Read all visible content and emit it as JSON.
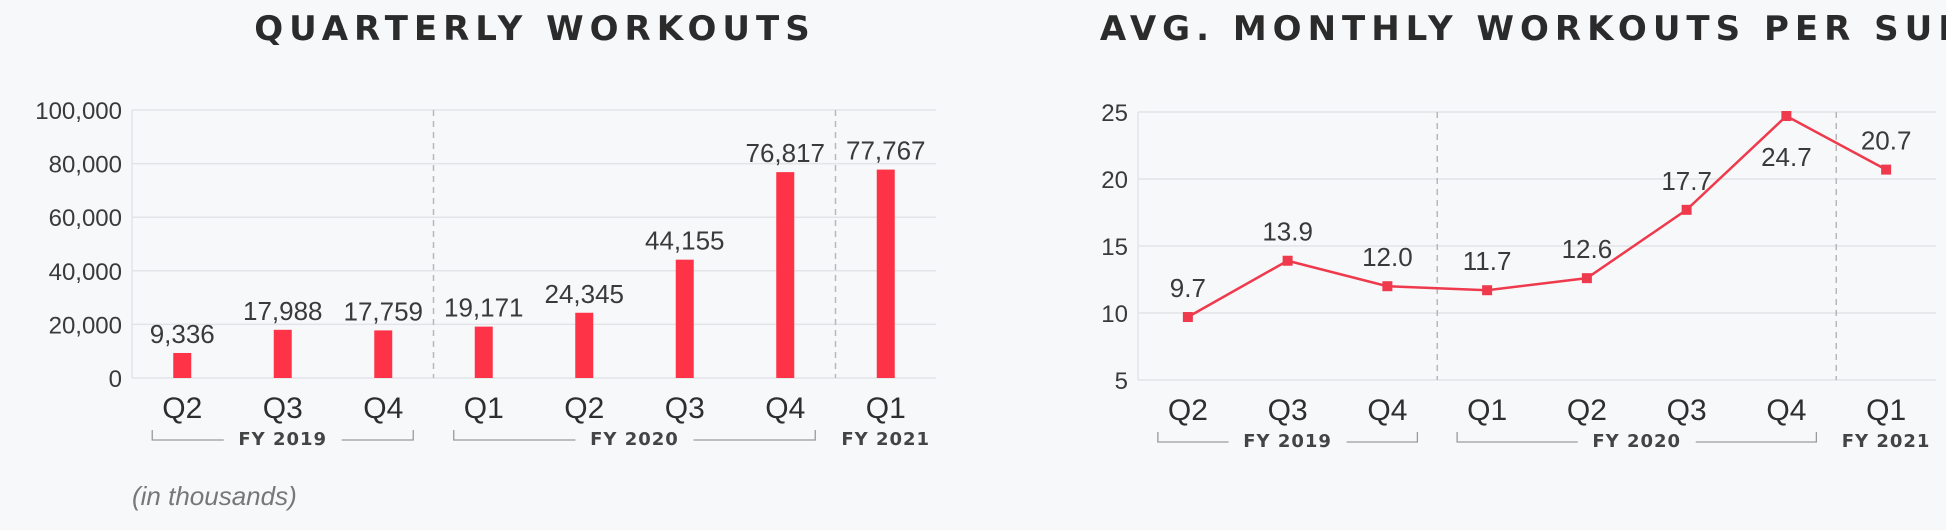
{
  "note": "(in thousands)",
  "chart_data": [
    {
      "type": "bar",
      "title": "QUARTERLY WORKOUTS",
      "categories": [
        "Q2",
        "Q3",
        "Q4",
        "Q1",
        "Q2",
        "Q3",
        "Q4",
        "Q1"
      ],
      "fiscal_years": [
        {
          "label": "FY 2019",
          "from": 0,
          "to": 2
        },
        {
          "label": "FY 2020",
          "from": 3,
          "to": 6
        },
        {
          "label": "FY 2021",
          "from": 7,
          "to": 7
        }
      ],
      "values": [
        9336,
        17988,
        17759,
        19171,
        24345,
        44155,
        76817,
        77767
      ],
      "data_labels": [
        "9,336",
        "17,988",
        "17,759",
        "19,171",
        "24,345",
        "44,155",
        "76,817",
        "77,767"
      ],
      "ylim": [
        0,
        100000
      ],
      "yticks": [
        0,
        20000,
        40000,
        60000,
        80000,
        100000
      ],
      "ytick_labels": [
        "0",
        "20,000",
        "40,000",
        "60,000",
        "80,000",
        "100,000"
      ],
      "grid": true,
      "color": "#ff3347"
    },
    {
      "type": "line",
      "title": "AVG. MONTHLY WORKOUTS PER SUB",
      "categories": [
        "Q2",
        "Q3",
        "Q4",
        "Q1",
        "Q2",
        "Q3",
        "Q4",
        "Q1"
      ],
      "fiscal_years": [
        {
          "label": "FY 2019",
          "from": 0,
          "to": 2
        },
        {
          "label": "FY 2020",
          "from": 3,
          "to": 6
        },
        {
          "label": "FY 2021",
          "from": 7,
          "to": 7
        }
      ],
      "values": [
        9.7,
        13.9,
        12.0,
        11.7,
        12.6,
        17.7,
        24.7,
        20.7
      ],
      "data_labels": [
        "9.7",
        "13.9",
        "12.0",
        "11.7",
        "12.6",
        "17.7",
        "24.7",
        "20.7"
      ],
      "ylim": [
        5,
        25
      ],
      "yticks": [
        5,
        10,
        15,
        20,
        25
      ],
      "ytick_labels": [
        "5",
        "10",
        "15",
        "20",
        "25"
      ],
      "grid": true,
      "color": "#ee3a4c"
    }
  ]
}
